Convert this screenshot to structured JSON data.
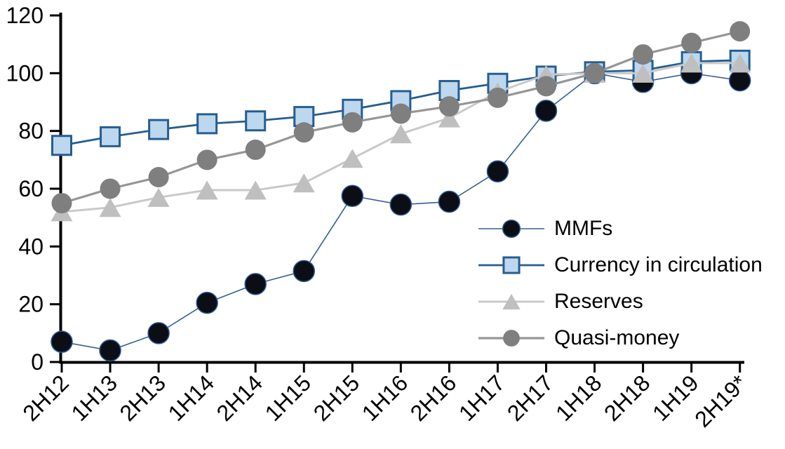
{
  "chart_data": {
    "type": "line",
    "title": "",
    "categories": [
      "2H12",
      "1H13",
      "2H13",
      "1H14",
      "2H14",
      "1H15",
      "2H15",
      "1H16",
      "2H16",
      "1H17",
      "2H17",
      "1H18",
      "2H18",
      "1H19",
      "2H19*"
    ],
    "y_axis": {
      "min": 0,
      "max": 120,
      "step": 20,
      "ticks": [
        0,
        20,
        40,
        60,
        80,
        100,
        120
      ]
    },
    "x_axis": {
      "label_rotation_deg": -45
    },
    "grid": false,
    "legend": {
      "position": "inside-right"
    },
    "axis_color": "#000000",
    "text_color": "#000000",
    "series": [
      {
        "id": "mmfs",
        "name": "MMFs",
        "marker": "circle",
        "marker_size": 30,
        "fill": "#0B0E14",
        "edge_color": "#2F5597",
        "edge_width": 1.5,
        "line_color": "#365F91",
        "line_width": 1.6,
        "values": [
          7,
          4,
          10,
          20.5,
          27,
          31.5,
          57.5,
          54.5,
          55.5,
          66,
          87,
          100,
          97,
          100,
          97.5
        ]
      },
      {
        "id": "currency",
        "name": "Currency in circulation",
        "marker": "square",
        "marker_size": 27,
        "fill": "#BDD7EE",
        "edge_color": "#255E91",
        "edge_width": 3,
        "line_color": "#255E91",
        "line_width": 2.8,
        "values": [
          75,
          78,
          80.5,
          82.5,
          83.5,
          85,
          87.5,
          90.5,
          94,
          96.5,
          99,
          100.5,
          101,
          104,
          104.5
        ]
      },
      {
        "id": "reserves",
        "name": "Reserves",
        "marker": "triangle",
        "marker_size": 30,
        "fill": "#BFBFBF",
        "edge_color": "#BFBFBF",
        "edge_width": 0,
        "line_color": "#C9C9C9",
        "line_width": 3,
        "values": [
          52,
          53.5,
          57,
          59.5,
          59.5,
          62,
          70.5,
          79,
          84.5,
          93.5,
          99.5,
          100,
          100,
          103.5,
          103.5
        ]
      },
      {
        "id": "quasi_money",
        "name": "Quasi-money",
        "marker": "circle",
        "marker_size": 29,
        "fill": "#7F7F7F",
        "edge_color": "#7F7F7F",
        "edge_width": 0,
        "line_color": "#969696",
        "line_width": 3.2,
        "values": [
          55,
          60,
          64,
          70,
          73.5,
          79.5,
          83,
          86,
          88.5,
          91.5,
          95.5,
          100,
          106.5,
          110.5,
          114.5
        ]
      }
    ]
  }
}
